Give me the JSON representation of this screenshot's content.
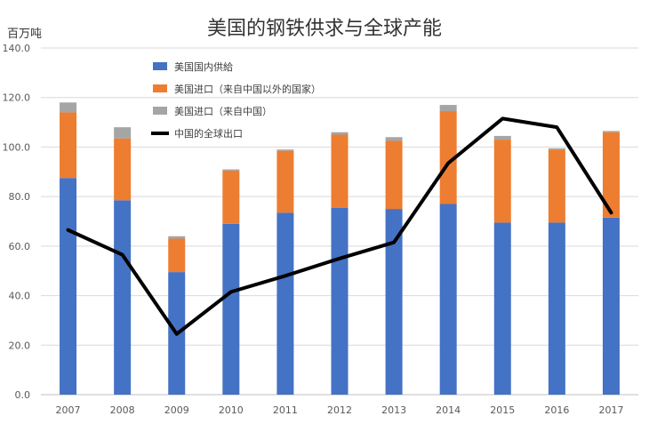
{
  "chart_data": {
    "type": "bar",
    "stacked": true,
    "title": "美国的钢铁供求与全球产能",
    "unit_label": "百万吨",
    "categories": [
      "2007",
      "2008",
      "2009",
      "2010",
      "2011",
      "2012",
      "2013",
      "2014",
      "2015",
      "2016",
      "2017"
    ],
    "ylim": [
      0,
      140
    ],
    "yticks": [
      "0.0",
      "20.0",
      "40.0",
      "60.0",
      "80.0",
      "100.0",
      "120.0",
      "140.0"
    ],
    "ytick_values": [
      0,
      20,
      40,
      60,
      80,
      100,
      120,
      140
    ],
    "grid": true,
    "legend_position": "top-left",
    "series": [
      {
        "name": "美国国内供給",
        "kind": "bar",
        "color": "#4472C4",
        "values": [
          87.5,
          78.5,
          49.5,
          69,
          73.5,
          75.5,
          75,
          77,
          69.5,
          69.5,
          71.5
        ]
      },
      {
        "name": "美国进口（来自中国以外的国家）",
        "kind": "bar",
        "color": "#ED7D31",
        "values": [
          26.5,
          25,
          13.5,
          21.5,
          25,
          29.5,
          27.5,
          37.5,
          33.5,
          29.5,
          34.5
        ]
      },
      {
        "name": "美国进口（来自中国）",
        "kind": "bar",
        "color": "#A5A5A5",
        "values": [
          4,
          4.5,
          1,
          0.5,
          0.5,
          1,
          1.5,
          2.5,
          1.5,
          0.5,
          0.5
        ]
      },
      {
        "name": "中国的全球出口",
        "kind": "line",
        "color": "#000000",
        "values": [
          66.5,
          56.5,
          24.5,
          41.5,
          48,
          55,
          61.5,
          93.5,
          111.5,
          108,
          73.5
        ]
      }
    ]
  }
}
